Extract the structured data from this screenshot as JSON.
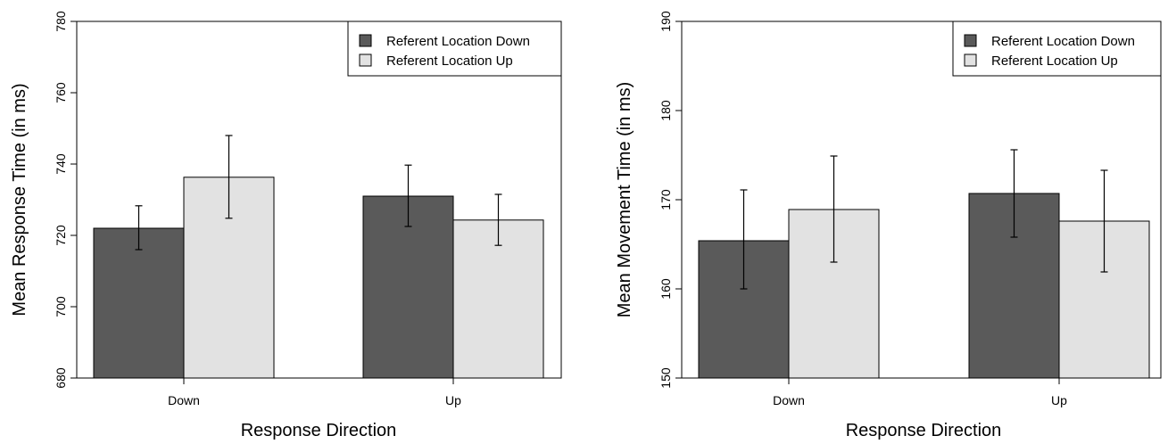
{
  "colors": {
    "series_dark": "#5a5a5a",
    "series_light": "#e2e2e2",
    "axis": "#000000"
  },
  "chart_data": [
    {
      "type": "bar",
      "title": "",
      "xlabel": "Response Direction",
      "ylabel": "Mean Response Time (in ms)",
      "categories": [
        "Down",
        "Up"
      ],
      "ylim": [
        680,
        780
      ],
      "yticks": [
        680,
        700,
        720,
        740,
        760,
        780
      ],
      "legend_position": "top-right",
      "grid": false,
      "series": [
        {
          "name": "Referent Location Down",
          "color": "#5a5a5a",
          "values": [
            722,
            731
          ],
          "error_low": [
            716,
            722.5
          ],
          "error_high": [
            728.3,
            739.7
          ]
        },
        {
          "name": "Referent Location Up",
          "color": "#e2e2e2",
          "values": [
            736.3,
            724.3
          ],
          "error_low": [
            724.8,
            717.2
          ],
          "error_high": [
            748,
            731.5
          ]
        }
      ]
    },
    {
      "type": "bar",
      "title": "",
      "xlabel": "Response Direction",
      "ylabel": "Mean Movement Time (in ms)",
      "categories": [
        "Down",
        "Up"
      ],
      "ylim": [
        150,
        190
      ],
      "yticks": [
        150,
        160,
        170,
        180,
        190
      ],
      "legend_position": "top-right",
      "grid": false,
      "series": [
        {
          "name": "Referent Location Down",
          "color": "#5a5a5a",
          "values": [
            165.4,
            170.7
          ],
          "error_low": [
            160,
            165.8
          ],
          "error_high": [
            171.1,
            175.6
          ]
        },
        {
          "name": "Referent Location Up",
          "color": "#e2e2e2",
          "values": [
            168.9,
            167.6
          ],
          "error_low": [
            163,
            161.9
          ],
          "error_high": [
            174.9,
            173.3
          ]
        }
      ]
    }
  ]
}
